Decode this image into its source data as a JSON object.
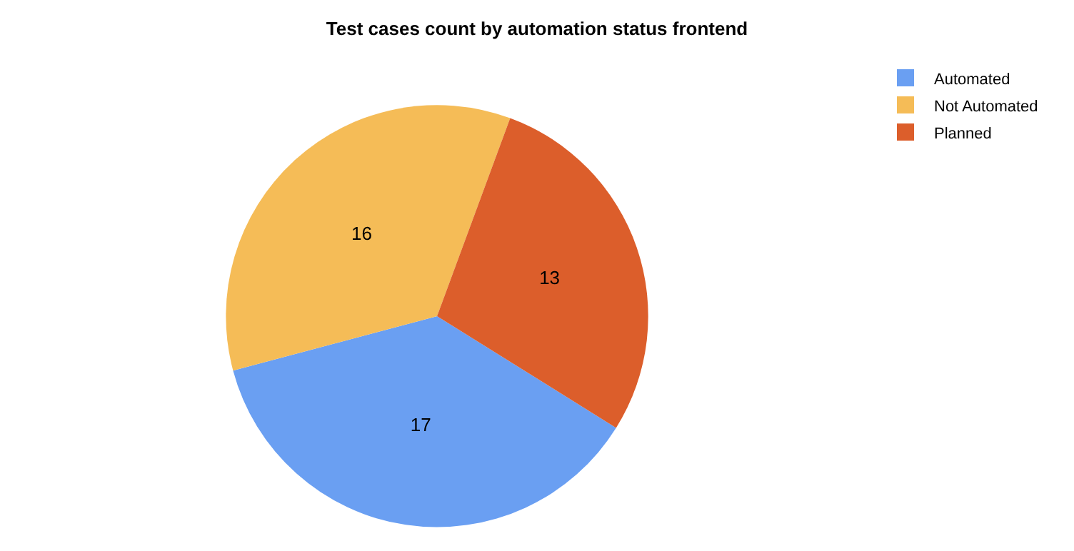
{
  "chart_data": {
    "type": "pie",
    "title": "Test cases count by automation status frontend",
    "categories": [
      "Automated",
      "Not Automated",
      "Planned"
    ],
    "values": [
      17,
      16,
      13
    ],
    "colors": [
      "#6a9ff2",
      "#f5bc57",
      "#dc5e2b"
    ],
    "data_labels": true,
    "legend": "top right"
  }
}
